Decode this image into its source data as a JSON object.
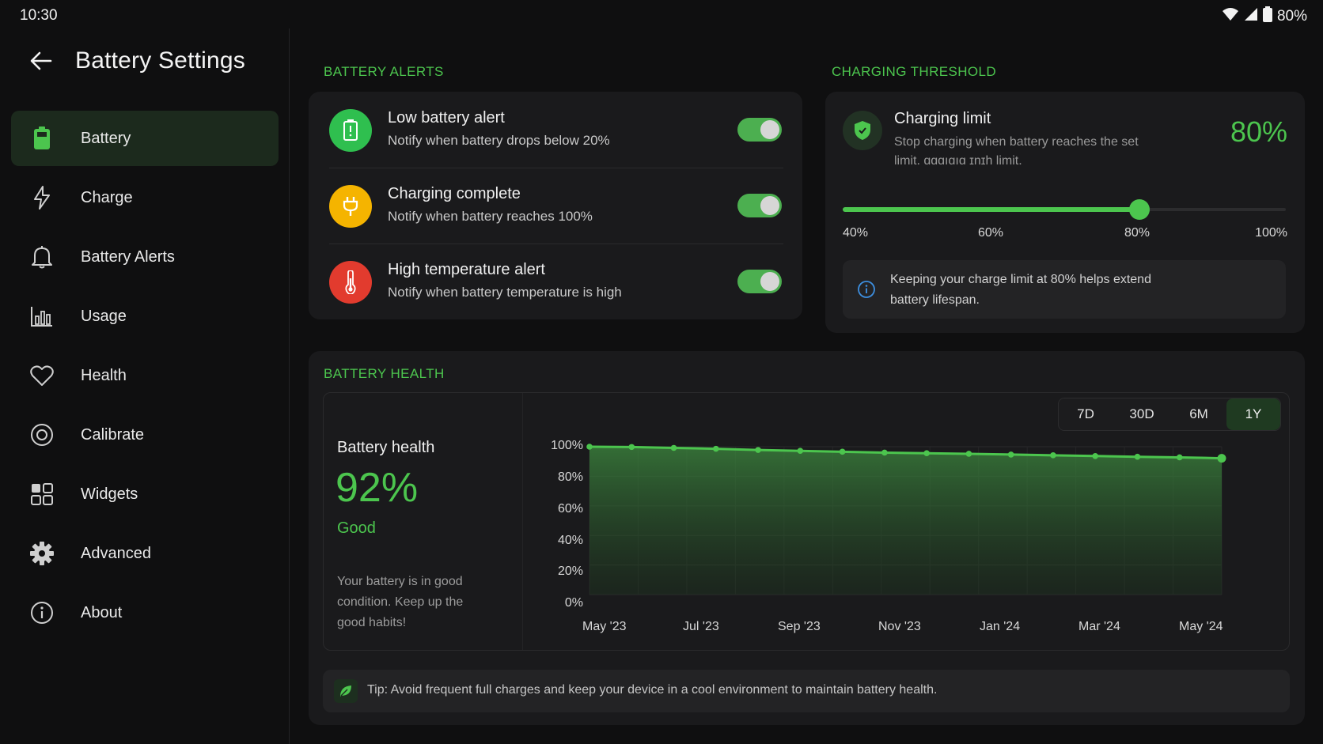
{
  "status": {
    "time": "10:30",
    "battery": "80%"
  },
  "header": {
    "title": "Battery Settings"
  },
  "sidebar": {
    "items": [
      {
        "label": "Battery",
        "icon": "battery-icon",
        "active": true
      },
      {
        "label": "Charge",
        "icon": "bolt-icon"
      },
      {
        "label": "Battery Alerts",
        "icon": "bell-icon"
      },
      {
        "label": "Usage",
        "icon": "bar-chart-icon"
      },
      {
        "label": "Health",
        "icon": "heart-icon"
      },
      {
        "label": "Calibrate",
        "icon": "target-icon"
      },
      {
        "label": "Widgets",
        "icon": "grid-icon"
      },
      {
        "label": "Advanced",
        "icon": "gear-icon"
      },
      {
        "label": "About",
        "icon": "info-icon"
      }
    ]
  },
  "alerts": {
    "section_label": "BATTERY ALERTS",
    "items": [
      {
        "title": "Low battery alert",
        "subtitle": "Notify when battery drops below 20%",
        "enabled": true,
        "icon": "battery-alert-icon",
        "color": "#2fbf4f"
      },
      {
        "title": "Charging complete",
        "subtitle": "Notify when battery reaches 100%",
        "enabled": true,
        "icon": "plug-icon",
        "color": "#f5b400"
      },
      {
        "title": "High temperature alert",
        "subtitle": "Notify when battery temperature is high",
        "enabled": true,
        "icon": "thermometer-icon",
        "color": "#e23b2e"
      }
    ]
  },
  "threshold": {
    "section_label": "CHARGING THRESHOLD",
    "title": "Charging limit",
    "description_line1": "Stop charging when battery reaches the set",
    "description_line2": "limit. ɑɑɑıɑıɑ ɪnɪh limit.",
    "value": "80%",
    "slider_fraction": 0.67,
    "ticks": [
      "40%",
      "60%",
      "80%",
      "100%"
    ],
    "info_line1": "Keeping your charge limit at 80% helps extend",
    "info_line2": "battery lifespan."
  },
  "health": {
    "section_label": "BATTERY HEALTH",
    "label": "Battery health",
    "value": "92%",
    "status": "Good",
    "description_lines": [
      "Your battery is in good",
      "condition. Keep up the",
      "good habits!"
    ],
    "timeframes": [
      "7D",
      "30D",
      "6M",
      "1Y"
    ],
    "active_timeframe": "1Y",
    "tip": "Tip: Avoid frequent full charges and keep your device in a cool environment to maintain battery health."
  },
  "chart_data": {
    "type": "area",
    "x_ticks": [
      "May '23",
      "Jul '23",
      "Sep '23",
      "Nov '23",
      "Jan '24",
      "Mar '24",
      "May '24"
    ],
    "y_ticks": [
      "100%",
      "80%",
      "60%",
      "40%",
      "20%",
      "0%"
    ],
    "ylim": [
      0,
      100
    ],
    "series": [
      {
        "values": [
          100,
          99.8,
          99.2,
          98.6,
          97.8,
          97.2,
          96.6,
          96.0,
          95.6,
          95.2,
          94.7,
          94.2,
          93.7,
          93.2,
          92.8,
          92.2
        ]
      }
    ],
    "grid": true,
    "accent": "#4cc54e"
  }
}
